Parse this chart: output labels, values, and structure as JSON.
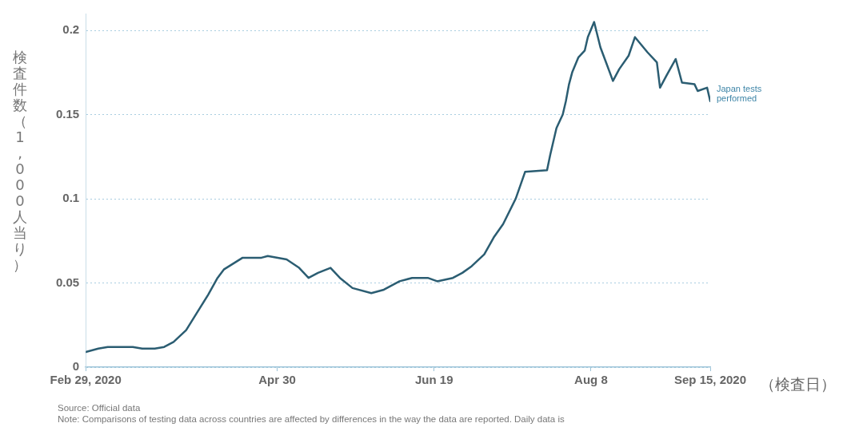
{
  "chart_data": {
    "type": "line",
    "ylabel": "検査件数（1,000人当り）",
    "xlabel": "（検査日）",
    "x": [
      "2020-02-29",
      "2020-03-04",
      "2020-03-07",
      "2020-03-15",
      "2020-03-18",
      "2020-03-22",
      "2020-03-25",
      "2020-03-28",
      "2020-04-01",
      "2020-04-04",
      "2020-04-08",
      "2020-04-11",
      "2020-04-13",
      "2020-04-19",
      "2020-04-25",
      "2020-04-27",
      "2020-05-03",
      "2020-05-07",
      "2020-05-10",
      "2020-05-13",
      "2020-05-17",
      "2020-05-20",
      "2020-05-24",
      "2020-05-30",
      "2020-06-03",
      "2020-06-08",
      "2020-06-12",
      "2020-06-17",
      "2020-06-20",
      "2020-06-25",
      "2020-06-28",
      "2020-07-01",
      "2020-07-05",
      "2020-07-08",
      "2020-07-11",
      "2020-07-15",
      "2020-07-18",
      "2020-07-25",
      "2020-07-26",
      "2020-07-28",
      "2020-07-30",
      "2020-07-31",
      "2020-08-01",
      "2020-08-02",
      "2020-08-04",
      "2020-08-06",
      "2020-08-07",
      "2020-08-09",
      "2020-08-11",
      "2020-08-13",
      "2020-08-15",
      "2020-08-17",
      "2020-08-20",
      "2020-08-22",
      "2020-08-26",
      "2020-08-29",
      "2020-08-30",
      "2020-09-01",
      "2020-09-04",
      "2020-09-06",
      "2020-09-10",
      "2020-09-11",
      "2020-09-14",
      "2020-09-15"
    ],
    "series": [
      {
        "name": "Japan tests performed",
        "color": "#2b5d72",
        "values": [
          0.009,
          0.011,
          0.012,
          0.012,
          0.011,
          0.011,
          0.012,
          0.015,
          0.022,
          0.031,
          0.043,
          0.053,
          0.058,
          0.065,
          0.065,
          0.066,
          0.064,
          0.059,
          0.053,
          0.056,
          0.059,
          0.053,
          0.047,
          0.044,
          0.046,
          0.051,
          0.053,
          0.053,
          0.051,
          0.053,
          0.056,
          0.06,
          0.067,
          0.077,
          0.085,
          0.1,
          0.116,
          0.117,
          0.126,
          0.142,
          0.15,
          0.158,
          0.168,
          0.175,
          0.184,
          0.188,
          0.196,
          0.205,
          0.19,
          0.18,
          0.17,
          0.177,
          0.185,
          0.196,
          0.187,
          0.181,
          0.166,
          0.173,
          0.183,
          0.169,
          0.168,
          0.164,
          0.166,
          0.158
        ]
      }
    ],
    "xlim": [
      "2020-02-29",
      "2020-09-15"
    ],
    "xticks": [
      {
        "value": "2020-02-29",
        "label": "Feb 29, 2020"
      },
      {
        "value": "2020-04-30",
        "label": "Apr 30"
      },
      {
        "value": "2020-06-19",
        "label": "Jun 19"
      },
      {
        "value": "2020-08-08",
        "label": "Aug 8"
      },
      {
        "value": "2020-09-15",
        "label": "Sep 15, 2020"
      }
    ],
    "ylim": [
      0,
      0.21
    ],
    "yticks": [
      0,
      0.05,
      0.1,
      0.15,
      0.2
    ],
    "grid": "y",
    "line_style": "solid",
    "legend": false,
    "annotations": [
      "Source: Official data",
      "Note: Comparisons of testing data across countries are affected by differences in the way the data are reported. Daily data is"
    ]
  }
}
